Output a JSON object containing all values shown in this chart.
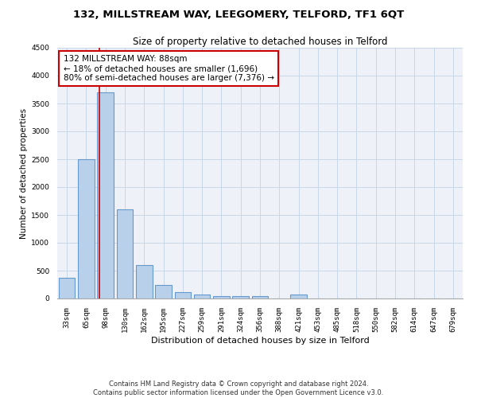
{
  "title": "132, MILLSTREAM WAY, LEEGOMERY, TELFORD, TF1 6QT",
  "subtitle": "Size of property relative to detached houses in Telford",
  "xlabel": "Distribution of detached houses by size in Telford",
  "ylabel": "Number of detached properties",
  "categories": [
    "33sqm",
    "65sqm",
    "98sqm",
    "130sqm",
    "162sqm",
    "195sqm",
    "227sqm",
    "259sqm",
    "291sqm",
    "324sqm",
    "356sqm",
    "388sqm",
    "421sqm",
    "453sqm",
    "485sqm",
    "518sqm",
    "550sqm",
    "582sqm",
    "614sqm",
    "647sqm",
    "679sqm"
  ],
  "values": [
    375,
    2500,
    3700,
    1600,
    600,
    240,
    110,
    65,
    50,
    50,
    50,
    0,
    65,
    0,
    0,
    0,
    0,
    0,
    0,
    0,
    0
  ],
  "bar_color": "#b8d0ea",
  "bar_edge_color": "#6699cc",
  "bar_edge_width": 0.8,
  "vline_color": "#cc0000",
  "annotation_line1": "132 MILLSTREAM WAY: 88sqm",
  "annotation_line2": "← 18% of detached houses are smaller (1,696)",
  "annotation_line3": "80% of semi-detached houses are larger (7,376) →",
  "annotation_box_color": "#ffffff",
  "annotation_box_edge_color": "#cc0000",
  "ylim": [
    0,
    4500
  ],
  "yticks": [
    0,
    500,
    1000,
    1500,
    2000,
    2500,
    3000,
    3500,
    4000,
    4500
  ],
  "grid_color": "#c8d8e8",
  "bg_color": "#eef2f8",
  "footer_line1": "Contains HM Land Registry data © Crown copyright and database right 2024.",
  "footer_line2": "Contains public sector information licensed under the Open Government Licence v3.0.",
  "title_fontsize": 9.5,
  "subtitle_fontsize": 8.5,
  "xlabel_fontsize": 8,
  "ylabel_fontsize": 7.5,
  "tick_fontsize": 6.5,
  "annotation_fontsize": 7.5,
  "footer_fontsize": 6
}
